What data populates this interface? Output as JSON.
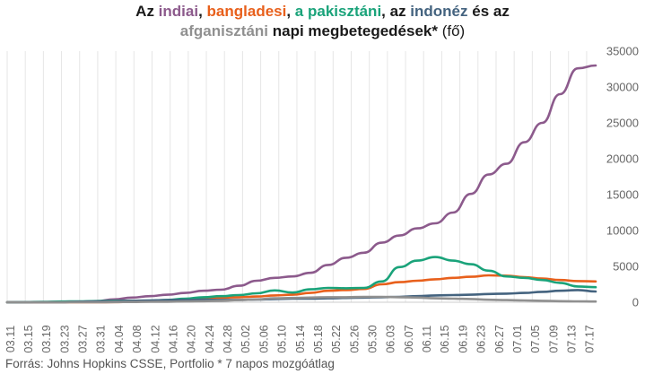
{
  "title": {
    "parts": [
      {
        "text": "Az ",
        "color": "#1a1a1a",
        "weight": "bold"
      },
      {
        "text": "indiai",
        "color": "#8c5a8c",
        "weight": "bold"
      },
      {
        "text": ", ",
        "color": "#1a1a1a",
        "weight": "bold"
      },
      {
        "text": "bangladesi",
        "color": "#e8601c",
        "weight": "bold"
      },
      {
        "text": ", ",
        "color": "#1a1a1a",
        "weight": "bold"
      },
      {
        "text": "a pakisztáni",
        "color": "#1aa37a",
        "weight": "bold"
      },
      {
        "text": ", az ",
        "color": "#1a1a1a",
        "weight": "bold"
      },
      {
        "text": "indonéz",
        "color": "#44637f",
        "weight": "bold"
      },
      {
        "text": " és az",
        "color": "#1a1a1a",
        "weight": "bold"
      }
    ],
    "parts2": [
      {
        "text": "afganisztáni",
        "color": "#909090",
        "weight": "bold"
      },
      {
        "text": " napi megbetegedések*",
        "color": "#1a1a1a",
        "weight": "bold"
      },
      {
        "text": " (fő)",
        "color": "#1a1a1a",
        "weight": "normal"
      }
    ]
  },
  "source": "Forrás: Johns Hopkins CSSE, Portfolio   * 7 napos mozgóátlag",
  "chart_data": {
    "type": "line",
    "xlabel": "",
    "ylabel": "",
    "ylim": [
      0,
      35000
    ],
    "yticks": [
      0,
      5000,
      10000,
      15000,
      20000,
      25000,
      30000,
      35000
    ],
    "y_axis_side": "right",
    "grid": "vertical",
    "x_tick_labels": [
      "03.11",
      "03.15",
      "03.19",
      "03.23",
      "03.27",
      "03.31",
      "04.04",
      "04.08",
      "04.12",
      "04.16",
      "04.20",
      "04.24",
      "04.28",
      "05.02",
      "05.06",
      "05.10",
      "05.14",
      "05.18",
      "05.22",
      "05.26",
      "05.30",
      "06.03",
      "06.07",
      "06.11",
      "06.15",
      "06.19",
      "06.23",
      "06.27",
      "07.01",
      "07.05",
      "07.09",
      "07.13",
      "07.17"
    ],
    "x": [
      "03.11",
      "03.15",
      "03.19",
      "03.23",
      "03.27",
      "03.31",
      "04.04",
      "04.08",
      "04.12",
      "04.16",
      "04.20",
      "04.24",
      "04.28",
      "05.02",
      "05.06",
      "05.10",
      "05.14",
      "05.18",
      "05.22",
      "05.26",
      "05.30",
      "06.03",
      "06.07",
      "06.11",
      "06.15",
      "06.19",
      "06.23",
      "06.27",
      "07.01",
      "07.05",
      "07.09",
      "07.13",
      "07.17",
      "07.19"
    ],
    "series": [
      {
        "key": "India",
        "color": "#8c5a8c",
        "values": [
          5,
          10,
          20,
          50,
          90,
          160,
          400,
          650,
          850,
          1050,
          1300,
          1600,
          1750,
          2300,
          3000,
          3400,
          3600,
          4100,
          5200,
          6200,
          6900,
          8300,
          9300,
          10300,
          11000,
          12500,
          15100,
          17800,
          19300,
          22300,
          25000,
          29000,
          32600,
          33000
        ]
      },
      {
        "key": "Bangladesh",
        "color": "#e8601c",
        "values": [
          0,
          0,
          0,
          0,
          0,
          0,
          20,
          60,
          120,
          280,
          350,
          550,
          650,
          700,
          800,
          950,
          1050,
          1300,
          1600,
          1700,
          1850,
          2500,
          2800,
          3000,
          3200,
          3400,
          3550,
          3750,
          3700,
          3500,
          3300,
          3100,
          2950,
          2900
        ]
      },
      {
        "key": "Pakistan",
        "color": "#1aa37a",
        "values": [
          0,
          20,
          50,
          100,
          130,
          150,
          200,
          200,
          220,
          320,
          500,
          700,
          850,
          1000,
          1250,
          1650,
          1350,
          1800,
          2000,
          1950,
          2000,
          2900,
          4900,
          5800,
          6300,
          5800,
          5300,
          4400,
          3600,
          3400,
          3100,
          2700,
          2200,
          2100
        ]
      },
      {
        "key": "Indonesia",
        "color": "#44637f",
        "values": [
          0,
          0,
          0,
          0,
          70,
          100,
          120,
          200,
          250,
          300,
          300,
          350,
          320,
          330,
          380,
          450,
          500,
          500,
          550,
          600,
          650,
          700,
          750,
          850,
          950,
          1000,
          1050,
          1150,
          1200,
          1300,
          1450,
          1600,
          1700,
          1500
        ]
      },
      {
        "key": "Afghanistan",
        "color": "#909090",
        "values": [
          0,
          0,
          0,
          0,
          0,
          0,
          20,
          40,
          60,
          80,
          110,
          150,
          200,
          300,
          400,
          550,
          600,
          650,
          700,
          700,
          750,
          750,
          700,
          650,
          550,
          500,
          450,
          350,
          300,
          250,
          200,
          150,
          120,
          100
        ]
      }
    ]
  }
}
